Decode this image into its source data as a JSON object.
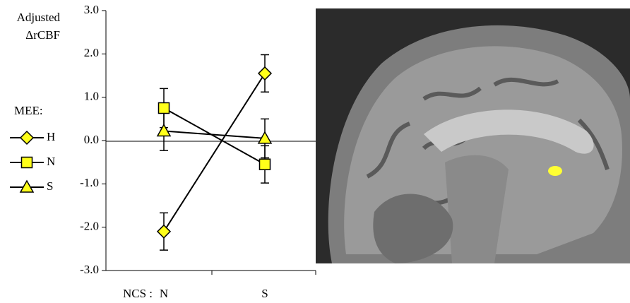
{
  "chart_data": {
    "type": "line",
    "y_label": [
      "Adjusted",
      "ΔrCBF"
    ],
    "x_label": "NCS :",
    "legend_title": "MEE:",
    "categories": [
      "N",
      "S"
    ],
    "ylim": [
      -3,
      3
    ],
    "yticks": [
      {
        "value": 3,
        "label": "3.0"
      },
      {
        "value": 2,
        "label": "2.0"
      },
      {
        "value": 1,
        "label": "1.0"
      },
      {
        "value": 0,
        "label": "0.0"
      },
      {
        "value": -1,
        "label": "-1.0"
      },
      {
        "value": -2,
        "label": "-2.0"
      },
      {
        "value": -3,
        "label": "-3.0"
      }
    ],
    "series": [
      {
        "name": "H",
        "marker": "diamond",
        "color": "#ffff1a",
        "values": [
          -2.1,
          1.55
        ],
        "errors": [
          0.43,
          0.43
        ]
      },
      {
        "name": "N",
        "marker": "square",
        "color": "#ffff1a",
        "values": [
          0.75,
          -0.55
        ],
        "errors": [
          0.45,
          0.43
        ]
      },
      {
        "name": "S",
        "marker": "triangle",
        "color": "#ffff1a",
        "values": [
          0.22,
          0.05
        ],
        "errors": [
          0.45,
          0.45
        ]
      }
    ]
  }
}
